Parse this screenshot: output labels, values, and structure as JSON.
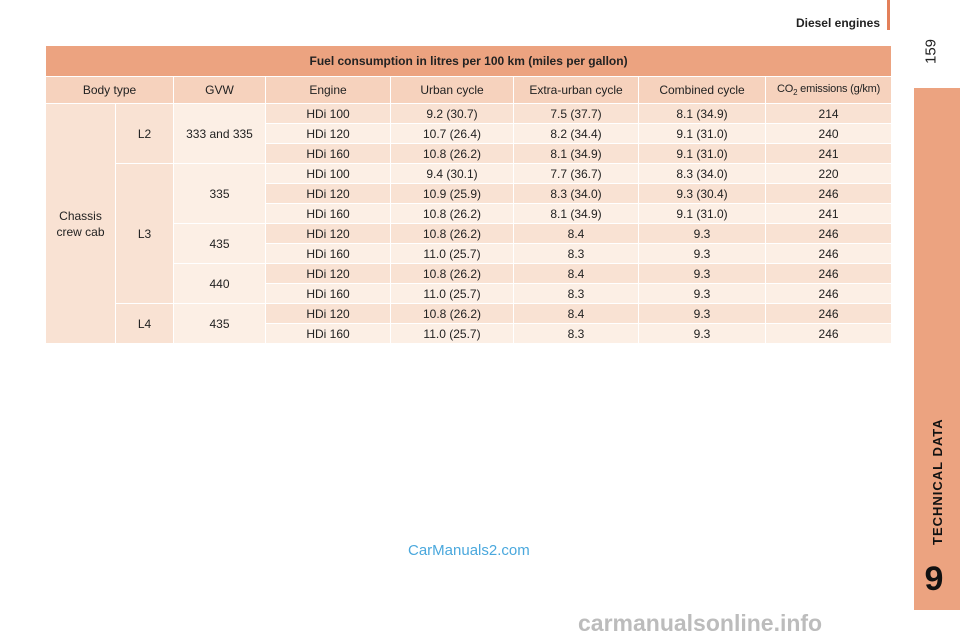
{
  "header": {
    "section_title": "Diesel engines",
    "page_number": "159"
  },
  "side_tab": {
    "label": "TECHNICAL DATA",
    "chapter_number": "9"
  },
  "table": {
    "caption": "Fuel consumption in litres per 100 km (miles per gallon)",
    "columns": {
      "body_type": "Body type",
      "gvw": "GVW",
      "engine": "Engine",
      "urban": "Urban cycle",
      "extra_urban": "Extra-urban cycle",
      "combined": "Combined cycle",
      "co2_prefix": "CO",
      "co2_sub": "2",
      "co2_suffix": " emissions (g/km)"
    },
    "body_type_line1": "Chassis",
    "body_type_line2": "crew cab",
    "length_groups": [
      "L2",
      "L3",
      "L4"
    ],
    "gvw_groups": [
      "333 and 335",
      "335",
      "435",
      "440",
      "435"
    ],
    "rows": [
      {
        "engine": "HDi 100",
        "urban": "9.2 (30.7)",
        "extra_urban": "7.5 (37.7)",
        "combined": "8.1 (34.9)",
        "co2": "214"
      },
      {
        "engine": "HDi 120",
        "urban": "10.7 (26.4)",
        "extra_urban": "8.2 (34.4)",
        "combined": "9.1 (31.0)",
        "co2": "240"
      },
      {
        "engine": "HDi 160",
        "urban": "10.8 (26.2)",
        "extra_urban": "8.1 (34.9)",
        "combined": "9.1 (31.0)",
        "co2": "241"
      },
      {
        "engine": "HDi 100",
        "urban": "9.4 (30.1)",
        "extra_urban": "7.7 (36.7)",
        "combined": "8.3 (34.0)",
        "co2": "220"
      },
      {
        "engine": "HDi 120",
        "urban": "10.9 (25.9)",
        "extra_urban": "8.3 (34.0)",
        "combined": "9.3 (30.4)",
        "co2": "246"
      },
      {
        "engine": "HDi 160",
        "urban": "10.8 (26.2)",
        "extra_urban": "8.1 (34.9)",
        "combined": "9.1 (31.0)",
        "co2": "241"
      },
      {
        "engine": "HDi 120",
        "urban": "10.8 (26.2)",
        "extra_urban": "8.4",
        "combined": "9.3",
        "co2": "246"
      },
      {
        "engine": "HDi 160",
        "urban": "11.0 (25.7)",
        "extra_urban": "8.3",
        "combined": "9.3",
        "co2": "246"
      },
      {
        "engine": "HDi 120",
        "urban": "10.8 (26.2)",
        "extra_urban": "8.4",
        "combined": "9.3",
        "co2": "246"
      },
      {
        "engine": "HDi 160",
        "urban": "11.0 (25.7)",
        "extra_urban": "8.3",
        "combined": "9.3",
        "co2": "246"
      },
      {
        "engine": "HDi 120",
        "urban": "10.8 (26.2)",
        "extra_urban": "8.4",
        "combined": "9.3",
        "co2": "246"
      },
      {
        "engine": "HDi 160",
        "urban": "11.0 (25.7)",
        "extra_urban": "8.3",
        "combined": "9.3",
        "co2": "246"
      }
    ]
  },
  "watermarks": {
    "site_blue": "CarManuals2.com",
    "site_bottom": "carmanualsonline.info"
  },
  "colors": {
    "accent": "#e3805a",
    "tab": "#eca380",
    "header_row": "#f6d2bd",
    "row_dark": "#f9e2d3",
    "row_light": "#fcefe5",
    "watermark_blue": "#4aa8dd"
  }
}
